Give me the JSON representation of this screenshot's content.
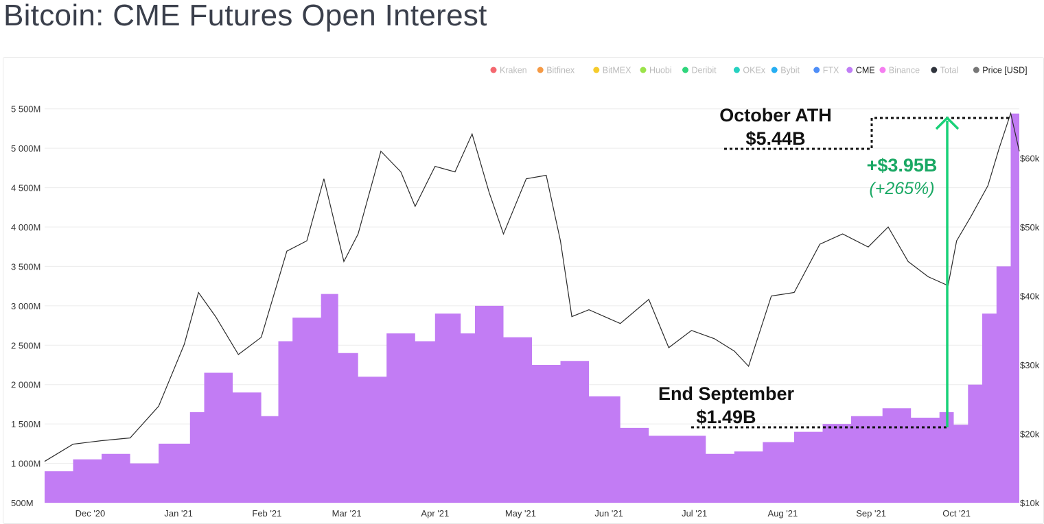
{
  "title": "Bitcoin: CME Futures Open Interest",
  "legend": [
    {
      "label": "Kraken",
      "color": "#f4676f",
      "active": false
    },
    {
      "label": "Bitfinex",
      "color": "#f59a45",
      "active": false
    },
    {
      "label": "BitMEX",
      "color": "#f5cb2b",
      "active": false
    },
    {
      "label": "Huobi",
      "color": "#9be34a",
      "active": false
    },
    {
      "label": "Deribit",
      "color": "#2fd57c",
      "active": false
    },
    {
      "label": "OKEx",
      "color": "#26d1c0",
      "active": false
    },
    {
      "label": "Bybit",
      "color": "#26aef2",
      "active": false
    },
    {
      "label": "FTX",
      "color": "#4e8ef7",
      "active": false
    },
    {
      "label": "CME",
      "color": "#c07ef5",
      "active": true
    },
    {
      "label": "Binance",
      "color": "#f57ef0",
      "active": false
    },
    {
      "label": "Total",
      "color": "#30343d",
      "active": false
    },
    {
      "label": "Price [USD]",
      "color": "#777777",
      "active": true
    }
  ],
  "annotations": {
    "ath_line1": "October ATH",
    "ath_line2": "$5.44B",
    "end_line1": "End September",
    "end_line2": "$1.49B",
    "delta_line1": "+$3.95B",
    "delta_line2": "(+265%)"
  },
  "chart_data": {
    "type": "area",
    "title": "Bitcoin: CME Futures Open Interest",
    "x_ticks": [
      "Dec '20",
      "Jan '21",
      "Feb '21",
      "Mar '21",
      "Apr '21",
      "May '21",
      "Jun '21",
      "Jul '21",
      "Aug '21",
      "Sep '21",
      "Oct '21"
    ],
    "y_left_ticks": [
      "500M",
      "1 000M",
      "1 500M",
      "2 000M",
      "2 500M",
      "3 000M",
      "3 500M",
      "4 000M",
      "4 500M",
      "5 000M",
      "5 500M"
    ],
    "y_left_range": [
      500,
      5750
    ],
    "y_left_unit": "USD millions",
    "y_right_ticks": [
      "$10k",
      "$20k",
      "$30k",
      "$40k",
      "$50k",
      "$60k"
    ],
    "y_right_range": [
      10000,
      70000
    ],
    "series": [
      {
        "name": "CME",
        "axis": "left",
        "x": [
          "2020-11-15",
          "2020-11-25",
          "2020-12-05",
          "2020-12-15",
          "2020-12-25",
          "2021-01-05",
          "2021-01-10",
          "2021-01-20",
          "2021-01-30",
          "2021-02-05",
          "2021-02-10",
          "2021-02-20",
          "2021-02-26",
          "2021-03-05",
          "2021-03-15",
          "2021-03-25",
          "2021-04-01",
          "2021-04-10",
          "2021-04-15",
          "2021-04-25",
          "2021-05-05",
          "2021-05-15",
          "2021-05-25",
          "2021-06-05",
          "2021-06-15",
          "2021-06-25",
          "2021-07-05",
          "2021-07-15",
          "2021-07-25",
          "2021-08-05",
          "2021-08-15",
          "2021-08-25",
          "2021-09-05",
          "2021-09-15",
          "2021-09-25",
          "2021-09-30",
          "2021-10-05",
          "2021-10-10",
          "2021-10-15",
          "2021-10-20",
          "2021-10-23"
        ],
        "values": [
          900,
          1050,
          1120,
          1000,
          1250,
          1650,
          2150,
          1900,
          1600,
          2550,
          2850,
          3150,
          2400,
          2100,
          2650,
          2550,
          2900,
          2650,
          3000,
          2600,
          2250,
          2300,
          1850,
          1450,
          1350,
          1350,
          1120,
          1150,
          1270,
          1400,
          1500,
          1600,
          1700,
          1580,
          1650,
          1490,
          2000,
          2900,
          3500,
          5440,
          5300
        ]
      },
      {
        "name": "Price [USD]",
        "axis": "right",
        "x": [
          "2020-11-15",
          "2020-11-25",
          "2020-12-05",
          "2020-12-15",
          "2020-12-25",
          "2021-01-03",
          "2021-01-08",
          "2021-01-14",
          "2021-01-22",
          "2021-01-30",
          "2021-02-08",
          "2021-02-15",
          "2021-02-21",
          "2021-02-28",
          "2021-03-05",
          "2021-03-13",
          "2021-03-20",
          "2021-03-25",
          "2021-04-01",
          "2021-04-08",
          "2021-04-14",
          "2021-04-20",
          "2021-04-25",
          "2021-05-03",
          "2021-05-10",
          "2021-05-15",
          "2021-05-19",
          "2021-05-25",
          "2021-06-05",
          "2021-06-15",
          "2021-06-22",
          "2021-06-30",
          "2021-07-08",
          "2021-07-15",
          "2021-07-20",
          "2021-07-28",
          "2021-08-05",
          "2021-08-14",
          "2021-08-22",
          "2021-08-31",
          "2021-09-07",
          "2021-09-14",
          "2021-09-21",
          "2021-09-28",
          "2021-10-01",
          "2021-10-06",
          "2021-10-12",
          "2021-10-16",
          "2021-10-20",
          "2021-10-23"
        ],
        "values": [
          16000,
          18500,
          19000,
          19400,
          24000,
          33000,
          40500,
          37000,
          31500,
          34000,
          46500,
          48000,
          57000,
          45000,
          49000,
          61000,
          58000,
          53000,
          58800,
          58000,
          63500,
          55000,
          49000,
          57000,
          57500,
          48000,
          37000,
          38000,
          36000,
          39500,
          32500,
          35000,
          33800,
          32000,
          29800,
          40000,
          40500,
          47500,
          49000,
          47100,
          50000,
          45000,
          42800,
          41500,
          48000,
          51500,
          56000,
          61500,
          66500,
          61000
        ]
      }
    ],
    "grid": true,
    "legend_position": "top-right"
  }
}
